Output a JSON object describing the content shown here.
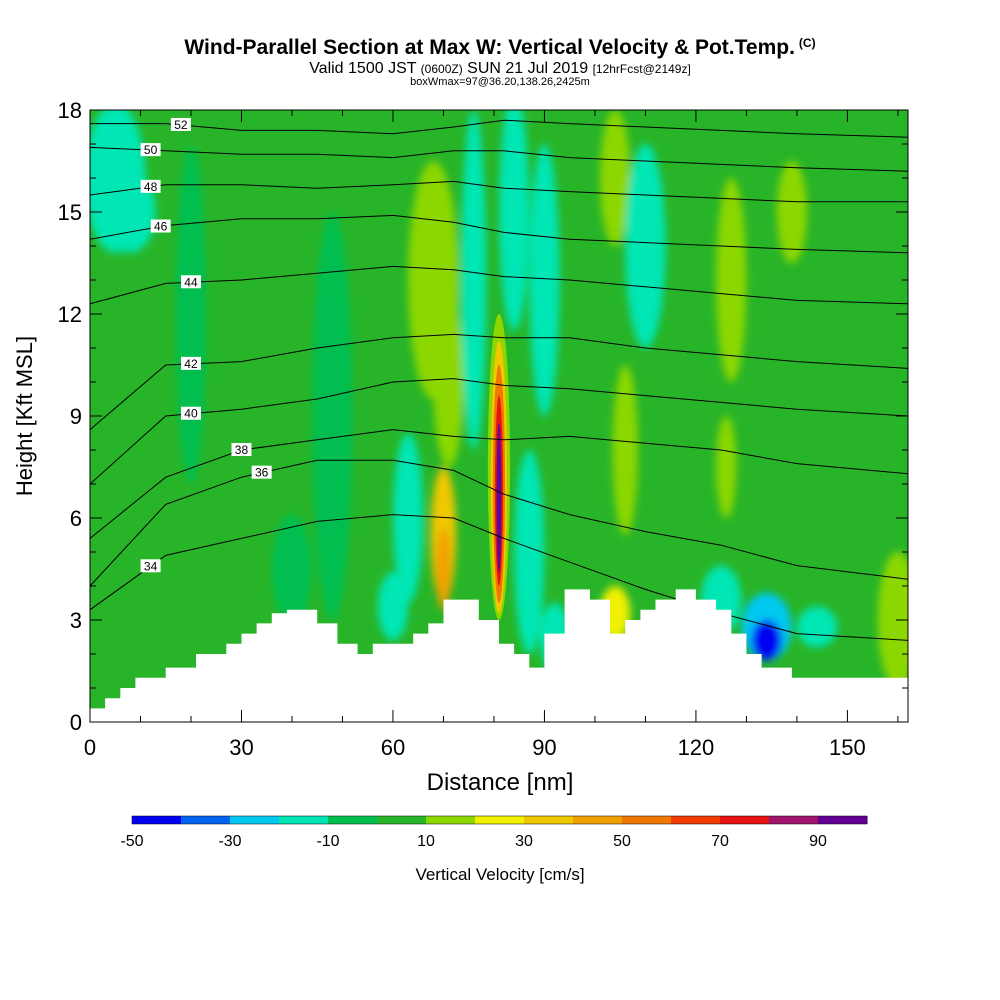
{
  "title": {
    "main": "Wind-Parallel Section at Max W: Vertical Velocity & Pot.Temp.",
    "copyright": "(C)",
    "valid_prefix": "Valid 1500 JST",
    "valid_z": "(0600Z)",
    "valid_date": "SUN 21 Jul 2019",
    "forecast": "[12hrFcst@2149z]",
    "boxinfo": "boxWmax=97@36.20,138.26,2425m"
  },
  "chart_data": {
    "type": "heatmap",
    "xlabel": "Distance [nm]",
    "ylabel": "Height [Kft MSL]",
    "xlim": [
      0,
      162
    ],
    "ylim": [
      0,
      18
    ],
    "x_ticks": [
      0,
      30,
      60,
      90,
      120,
      150
    ],
    "y_ticks": [
      0,
      3,
      6,
      9,
      12,
      15,
      18
    ],
    "colorbar": {
      "label": "Vertical Velocity [cm/s]",
      "tick_labels": [
        "-50",
        "-30",
        "-10",
        "10",
        "30",
        "50",
        "70",
        "90"
      ],
      "levels": [
        -50,
        -40,
        -30,
        -20,
        -10,
        0,
        10,
        20,
        30,
        40,
        50,
        60,
        70,
        80,
        90,
        100
      ],
      "colors": [
        "#0000f0",
        "#0064f0",
        "#00c8f0",
        "#00e6b4",
        "#00be50",
        "#28b428",
        "#8cd700",
        "#f0f000",
        "#f0c800",
        "#f0a000",
        "#f07800",
        "#f03c00",
        "#e61414",
        "#a0146e",
        "#640096"
      ]
    },
    "terrain": [
      [
        0,
        0.4
      ],
      [
        3,
        0.4
      ],
      [
        3,
        0.7
      ],
      [
        6,
        0.7
      ],
      [
        6,
        1.0
      ],
      [
        9,
        1.0
      ],
      [
        9,
        1.3
      ],
      [
        15,
        1.3
      ],
      [
        15,
        1.6
      ],
      [
        21,
        1.6
      ],
      [
        21,
        2.0
      ],
      [
        27,
        2.0
      ],
      [
        27,
        2.3
      ],
      [
        30,
        2.3
      ],
      [
        30,
        2.6
      ],
      [
        33,
        2.6
      ],
      [
        33,
        2.9
      ],
      [
        36,
        2.9
      ],
      [
        36,
        3.2
      ],
      [
        39,
        3.2
      ],
      [
        39,
        3.3
      ],
      [
        45,
        3.3
      ],
      [
        45,
        2.9
      ],
      [
        49,
        2.9
      ],
      [
        49,
        2.3
      ],
      [
        53,
        2.3
      ],
      [
        53,
        2.0
      ],
      [
        56,
        2.0
      ],
      [
        56,
        2.3
      ],
      [
        64,
        2.3
      ],
      [
        64,
        2.6
      ],
      [
        67,
        2.6
      ],
      [
        67,
        2.9
      ],
      [
        70,
        2.9
      ],
      [
        70,
        3.6
      ],
      [
        77,
        3.6
      ],
      [
        77,
        3.0
      ],
      [
        81,
        3.0
      ],
      [
        81,
        2.3
      ],
      [
        84,
        2.3
      ],
      [
        84,
        2.0
      ],
      [
        87,
        2.0
      ],
      [
        87,
        1.6
      ],
      [
        90,
        1.6
      ],
      [
        90,
        2.6
      ],
      [
        94,
        2.6
      ],
      [
        94,
        3.9
      ],
      [
        99,
        3.9
      ],
      [
        99,
        3.6
      ],
      [
        103,
        3.6
      ],
      [
        103,
        2.6
      ],
      [
        106,
        2.6
      ],
      [
        106,
        3.0
      ],
      [
        109,
        3.0
      ],
      [
        109,
        3.3
      ],
      [
        112,
        3.3
      ],
      [
        112,
        3.6
      ],
      [
        116,
        3.6
      ],
      [
        116,
        3.9
      ],
      [
        120,
        3.9
      ],
      [
        120,
        3.6
      ],
      [
        124,
        3.6
      ],
      [
        124,
        3.3
      ],
      [
        127,
        3.3
      ],
      [
        127,
        2.6
      ],
      [
        130,
        2.6
      ],
      [
        130,
        2.0
      ],
      [
        133,
        2.0
      ],
      [
        133,
        1.6
      ],
      [
        139,
        1.6
      ],
      [
        139,
        1.3
      ],
      [
        162,
        1.3
      ],
      [
        162,
        0
      ]
    ],
    "theta_contours": [
      {
        "level": "34",
        "y": [
          3.3,
          4.9,
          5.4,
          5.9,
          6.1,
          6.0,
          5.4,
          4.7,
          3.9,
          3.2,
          2.6,
          2.4
        ],
        "label_x": 12
      },
      {
        "level": "36",
        "y": [
          4.0,
          6.4,
          7.2,
          7.7,
          7.7,
          7.4,
          6.7,
          6.1,
          5.6,
          5.2,
          4.6,
          4.2
        ],
        "label_x": 34
      },
      {
        "level": "38",
        "y": [
          5.4,
          7.2,
          8.0,
          8.3,
          8.6,
          8.4,
          8.3,
          8.4,
          8.2,
          8.0,
          7.6,
          7.3
        ],
        "label_x": 30
      },
      {
        "level": "40",
        "y": [
          7.0,
          9.0,
          9.2,
          9.5,
          10.0,
          10.1,
          9.9,
          9.8,
          9.6,
          9.4,
          9.2,
          9.0
        ],
        "label_x": 20
      },
      {
        "level": "42",
        "y": [
          8.6,
          10.5,
          10.6,
          11.0,
          11.3,
          11.4,
          11.3,
          11.3,
          11.0,
          10.8,
          10.6,
          10.4
        ],
        "label_x": 20
      },
      {
        "level": "44",
        "y": [
          12.3,
          12.9,
          13.0,
          13.2,
          13.4,
          13.3,
          13.1,
          13.0,
          12.8,
          12.6,
          12.4,
          12.3
        ],
        "label_x": 20
      },
      {
        "level": "46",
        "y": [
          14.2,
          14.6,
          14.8,
          14.8,
          14.9,
          14.7,
          14.4,
          14.2,
          14.1,
          14.0,
          13.9,
          13.8
        ],
        "label_x": 14
      },
      {
        "level": "48",
        "y": [
          15.5,
          15.8,
          15.8,
          15.7,
          15.8,
          15.9,
          15.7,
          15.6,
          15.5,
          15.4,
          15.3,
          15.3
        ],
        "label_x": 12
      },
      {
        "level": "50",
        "y": [
          16.9,
          16.8,
          16.7,
          16.7,
          16.6,
          16.8,
          16.8,
          16.6,
          16.5,
          16.4,
          16.3,
          16.2
        ],
        "label_x": 12
      },
      {
        "level": "52",
        "y": [
          17.6,
          17.6,
          17.4,
          17.4,
          17.3,
          17.5,
          17.7,
          17.6,
          17.5,
          17.4,
          17.3,
          17.2
        ],
        "label_x": 18
      }
    ]
  }
}
